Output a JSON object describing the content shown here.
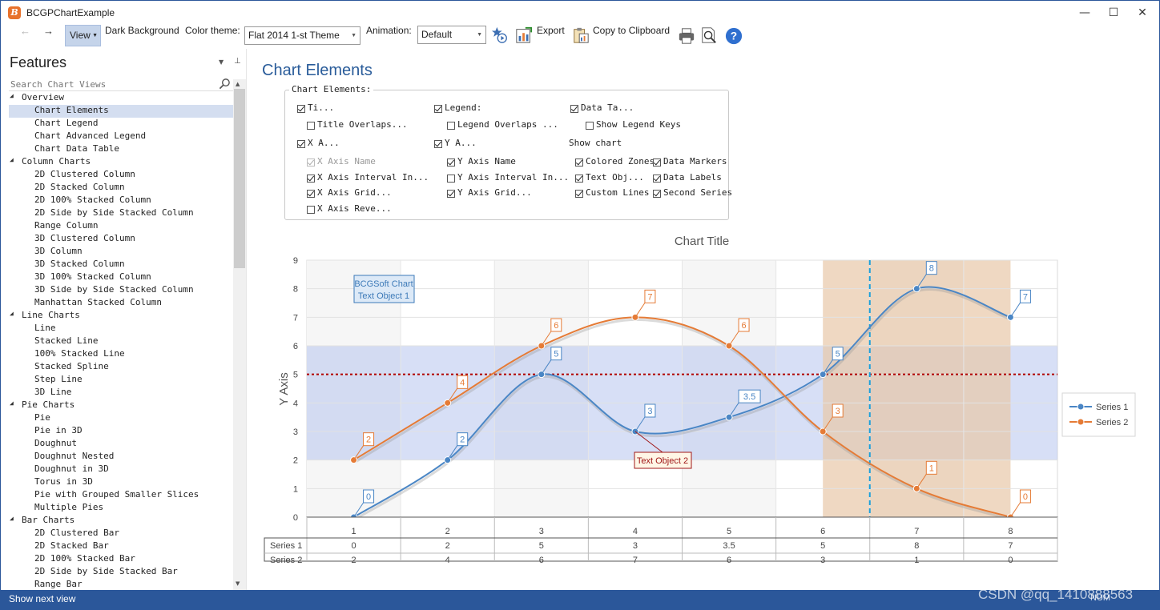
{
  "window": {
    "title": "BCGPChartExample",
    "app_icon_letter": "B",
    "minimize": "—",
    "maximize": "☐",
    "close": "✕"
  },
  "toolbar": {
    "back": "←",
    "forward": "→",
    "view_label": "View",
    "dark_background_label": "Dark Background",
    "color_theme_label": "Color theme:",
    "color_theme_value": "Flat 2014 1-st Theme",
    "animation_label": "Animation:",
    "animation_value": "Default",
    "export_label": "Export",
    "copy_label": "Copy to Clipboard"
  },
  "sidebar": {
    "title": "Features",
    "search_placeholder": "Search Chart Views",
    "tree": [
      {
        "label": "Overview",
        "category": true
      },
      {
        "label": "Chart Elements",
        "selected": true
      },
      {
        "label": "Chart Legend"
      },
      {
        "label": "Chart Advanced Legend"
      },
      {
        "label": "Chart Data Table"
      },
      {
        "label": "Column Charts",
        "category": true
      },
      {
        "label": "2D Clustered Column"
      },
      {
        "label": "2D Stacked Column"
      },
      {
        "label": "2D 100% Stacked Column"
      },
      {
        "label": "2D Side by Side Stacked Column"
      },
      {
        "label": "Range Column"
      },
      {
        "label": "3D Clustered Column"
      },
      {
        "label": "3D Column"
      },
      {
        "label": "3D Stacked Column"
      },
      {
        "label": "3D 100% Stacked Column"
      },
      {
        "label": "3D Side by Side Stacked Column"
      },
      {
        "label": "Manhattan Stacked Column"
      },
      {
        "label": "Line Charts",
        "category": true
      },
      {
        "label": "Line"
      },
      {
        "label": "Stacked Line"
      },
      {
        "label": "100% Stacked Line"
      },
      {
        "label": "Stacked Spline"
      },
      {
        "label": "Step Line"
      },
      {
        "label": "3D Line"
      },
      {
        "label": "Pie Charts",
        "category": true
      },
      {
        "label": "Pie"
      },
      {
        "label": "Pie in 3D"
      },
      {
        "label": "Doughnut"
      },
      {
        "label": "Doughnut Nested"
      },
      {
        "label": "Doughnut in 3D"
      },
      {
        "label": "Torus in 3D"
      },
      {
        "label": "Pie with Grouped Smaller Slices"
      },
      {
        "label": "Multiple Pies"
      },
      {
        "label": "Bar Charts",
        "category": true
      },
      {
        "label": "2D Clustered Bar"
      },
      {
        "label": "2D Stacked Bar"
      },
      {
        "label": "2D 100% Stacked Bar"
      },
      {
        "label": "2D Side by Side Stacked Bar"
      },
      {
        "label": "Range Bar"
      }
    ]
  },
  "status": {
    "left": "Show next view",
    "right": "NUM",
    "watermark": "CSDN @qq_1410888563"
  },
  "main": {
    "heading": "Chart Elements",
    "group_title": "Chart Elements:",
    "show_chart_label": "Show chart",
    "options": {
      "title": {
        "label": "Ti...",
        "checked": true
      },
      "legend": {
        "label": "Legend:",
        "checked": true
      },
      "data_table": {
        "label": "Data Ta...",
        "checked": true
      },
      "title_overlaps": {
        "label": "Title Overlaps...",
        "checked": false
      },
      "legend_overlaps": {
        "label": "Legend Overlaps ...",
        "checked": false
      },
      "show_legend_keys": {
        "label": "Show Legend Keys",
        "checked": false
      },
      "x_axis": {
        "label": "X A...",
        "checked": true
      },
      "y_axis": {
        "label": "Y A...",
        "checked": true
      },
      "x_axis_name": {
        "label": "X Axis Name",
        "checked": true,
        "disabled": true
      },
      "y_axis_name": {
        "label": "Y Axis Name",
        "checked": true
      },
      "x_axis_interval": {
        "label": "X Axis Interval In...",
        "checked": true
      },
      "y_axis_interval": {
        "label": "Y Axis Interval In...",
        "checked": false
      },
      "x_axis_grid": {
        "label": "X Axis Grid...",
        "checked": true
      },
      "y_axis_grid": {
        "label": "Y Axis Grid...",
        "checked": true
      },
      "x_axis_reverse": {
        "label": "X Axis Reve...",
        "checked": false
      },
      "colored_zones": {
        "label": "Colored Zones",
        "checked": true
      },
      "data_markers": {
        "label": "Data Markers",
        "checked": true
      },
      "text_objects": {
        "label": "Text Obj...",
        "checked": true
      },
      "data_labels": {
        "label": "Data Labels",
        "checked": true
      },
      "custom_lines": {
        "label": "Custom Lines",
        "checked": true
      },
      "second_series": {
        "label": "Second Series",
        "checked": true
      }
    }
  },
  "chart_data": {
    "type": "line",
    "title": "Chart Title",
    "ylabel": "Y Axis",
    "xlabel": "",
    "ylim": [
      0,
      9
    ],
    "yticks": [
      "0",
      "1",
      "2",
      "3",
      "4",
      "5",
      "6",
      "7",
      "8",
      "9"
    ],
    "categories": [
      "1",
      "2",
      "3",
      "4",
      "5",
      "6",
      "7",
      "8"
    ],
    "series": [
      {
        "name": "Series 1",
        "color": "#4a86c5",
        "values": [
          0,
          2,
          5,
          3,
          3.5,
          5,
          8,
          7
        ],
        "labels": [
          "0",
          "2",
          "5",
          "3",
          "3.5",
          "5",
          "8",
          "7"
        ]
      },
      {
        "name": "Series 2",
        "color": "#e57b36",
        "values": [
          2,
          4,
          6,
          7,
          6,
          3,
          1,
          0
        ],
        "labels": [
          "2",
          "4",
          "6",
          "7",
          "6",
          "3",
          "1",
          "0"
        ]
      }
    ],
    "zones": [
      {
        "axis": "y",
        "from": 2,
        "to": 6,
        "color": "#b7c4ee"
      },
      {
        "axis": "x",
        "from": 6,
        "to": 8,
        "color": "#e8c7a8"
      }
    ],
    "custom_lines": [
      {
        "axis": "y",
        "value": 5,
        "color": "#b00000",
        "style": "dotted"
      },
      {
        "axis": "x",
        "value": 6.5,
        "color": "#1aa0dc",
        "style": "dashed"
      }
    ],
    "text_objects": [
      {
        "text": "BCGSoft Chart\nText Object 1",
        "color": "#3d7ab8"
      },
      {
        "text": "Text Object 2",
        "color": "#a01818"
      }
    ],
    "legend": {
      "position": "right",
      "entries": [
        "Series 1",
        "Series 2"
      ]
    },
    "data_table": {
      "rows": [
        {
          "name": "Series 1",
          "values": [
            "0",
            "2",
            "5",
            "3",
            "3.5",
            "5",
            "8",
            "7"
          ]
        },
        {
          "name": "Series 2",
          "values": [
            "2",
            "4",
            "6",
            "7",
            "6",
            "3",
            "1",
            "0"
          ]
        }
      ]
    }
  }
}
